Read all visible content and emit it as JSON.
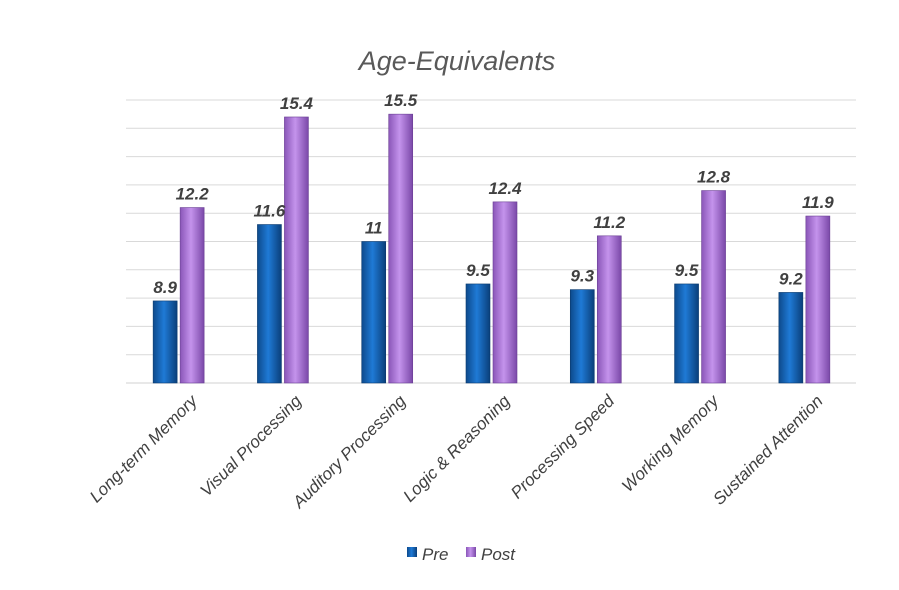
{
  "chart_data": {
    "type": "bar",
    "title": "Age-Equivalents",
    "xlabel": "",
    "ylabel": "",
    "categories": [
      "Long-term Memory",
      "Visual Processing",
      "Auditory Processing",
      "Logic & Reasoning",
      "Processing Speed",
      "Working Memory",
      "Sustained Attention"
    ],
    "series": [
      {
        "name": "Pre",
        "values": [
          8.9,
          11.6,
          11,
          9.5,
          9.3,
          9.5,
          9.2
        ],
        "labels": [
          "8.9",
          "11.6",
          "11",
          "9.5",
          "9.3",
          "9.5",
          "9.2"
        ],
        "color": "#1a6fc4"
      },
      {
        "name": "Post",
        "values": [
          12.2,
          15.4,
          15.5,
          12.4,
          11.2,
          12.8,
          11.9
        ],
        "labels": [
          "12.2",
          "15.4",
          "15.5",
          "12.4",
          "11.2",
          "12.8",
          "11.9"
        ],
        "color": "#b985e0"
      }
    ],
    "ylim": [
      6,
      16
    ],
    "y_gridlines": [
      6,
      7,
      8,
      9,
      10,
      11,
      12,
      13,
      14,
      15,
      16
    ],
    "y_tick_labels_shown": false,
    "grid": true,
    "data_labels": true,
    "legend": {
      "position": "bottom",
      "entries": [
        "Pre",
        "Post"
      ]
    }
  }
}
